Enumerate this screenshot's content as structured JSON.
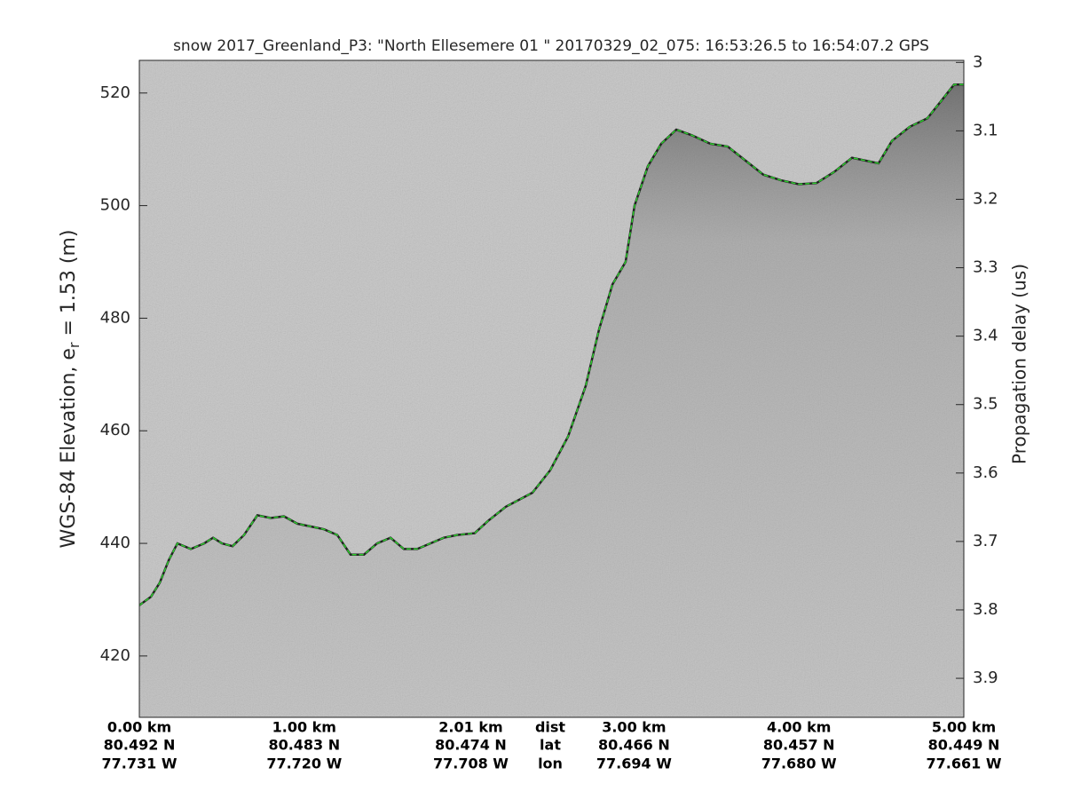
{
  "chart_data": {
    "type": "line",
    "title": "snow 2017_Greenland_P3: \"North Ellesemere 01 \"  20170329_02_075: 16:53:26.5 to 16:54:07.2 GPS",
    "ylabel": {
      "text": "WGS-84 Elevation, e",
      "sub": "r",
      "rest": " = 1.53 (m)"
    },
    "y2label": "Propagation delay (us)",
    "x": [
      0,
      0.07,
      0.124,
      0.178,
      0.231,
      0.312,
      0.393,
      0.447,
      0.501,
      0.565,
      0.635,
      0.716,
      0.797,
      0.877,
      0.958,
      1.039,
      1.12,
      1.2,
      1.281,
      1.362,
      1.442,
      1.523,
      1.604,
      1.685,
      1.765,
      1.846,
      1.927,
      2.034,
      2.115,
      2.223,
      2.384,
      2.492,
      2.6,
      2.707,
      2.788,
      2.869,
      2.949,
      3.003,
      3.084,
      3.165,
      3.256,
      3.35,
      3.461,
      3.568,
      3.676,
      3.784,
      3.891,
      3.999,
      4.107,
      4.214,
      4.322,
      4.403,
      4.483,
      4.564,
      4.672,
      4.779,
      4.86,
      4.941,
      5.0
    ],
    "values": [
      429,
      430.5,
      433,
      437,
      440,
      439,
      440,
      441,
      440,
      439.5,
      441.5,
      445,
      444.5,
      444.8,
      443.5,
      443,
      442.5,
      441.5,
      438,
      438,
      440,
      441,
      439,
      439,
      440,
      441,
      441.5,
      441.8,
      444,
      446.5,
      449,
      453,
      459,
      468,
      478,
      486,
      490,
      500,
      507,
      511,
      513.5,
      512.5,
      511,
      510.5,
      508,
      505.5,
      504.5,
      503.8,
      504,
      506,
      508.5,
      508,
      507.5,
      511.5,
      514,
      515.5,
      518.5,
      521.5,
      521.5
    ],
    "color": "#2ecc2e",
    "xlim": [
      0,
      5
    ],
    "xticks": [
      {
        "value": 0,
        "label": "0.00 km"
      },
      {
        "value": 1.0,
        "label": "1.00 km"
      },
      {
        "value": 2.01,
        "label": "2.01 km"
      },
      {
        "value": 3.0,
        "label": "3.00 km"
      },
      {
        "value": 4.0,
        "label": "4.00 km"
      },
      {
        "value": 5.0,
        "label": "5.00 km"
      }
    ],
    "x_lat_labels": [
      "80.492 N",
      "80.483 N",
      "80.474 N",
      "80.466 N",
      "80.457 N",
      "80.449 N"
    ],
    "x_lon_labels": [
      "77.731 W",
      "77.720 W",
      "77.708 W",
      "77.694 W",
      "77.680 W",
      "77.661 W"
    ],
    "row_labels": [
      "dist",
      "lat",
      "lon"
    ],
    "ylim": [
      409.1,
      525.8
    ],
    "yticks": [
      420,
      440,
      460,
      480,
      500,
      520
    ],
    "y2lim": [
      2.997,
      3.957
    ],
    "y2ticks": [
      3,
      3.1,
      3.2,
      3.3,
      3.4,
      3.5,
      3.6,
      3.7,
      3.8,
      3.9
    ]
  }
}
